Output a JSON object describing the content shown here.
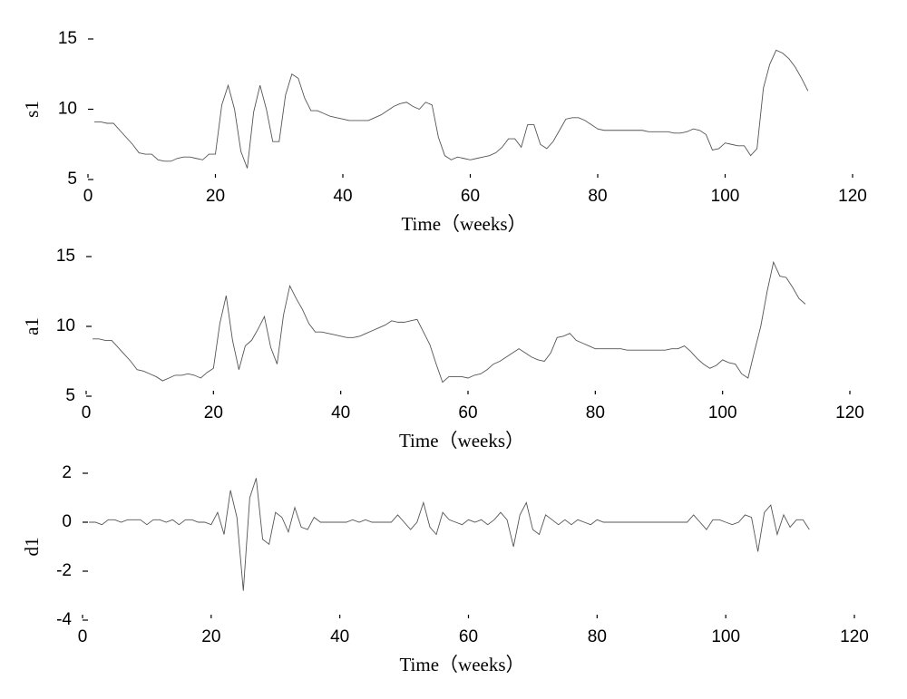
{
  "chart_data": [
    {
      "type": "line",
      "ylabel": "s1",
      "xlabel": "Time（weeks）",
      "color": "#555555",
      "x": [
        1,
        2,
        3,
        4,
        5,
        6,
        7,
        8,
        9,
        10,
        11,
        12,
        13,
        14,
        15,
        16,
        17,
        18,
        19,
        20,
        21,
        22,
        23,
        24,
        25,
        26,
        27,
        28,
        29,
        30,
        31,
        32,
        33,
        34,
        35,
        36,
        37,
        38,
        39,
        40,
        41,
        42,
        43,
        44,
        45,
        46,
        47,
        48,
        49,
        50,
        51,
        52,
        53,
        54,
        55,
        56,
        57,
        58,
        59,
        60,
        61,
        62,
        63,
        64,
        65,
        66,
        67,
        68,
        69,
        70,
        71,
        72,
        73,
        74,
        75,
        76,
        77,
        78,
        79,
        80,
        81,
        82,
        83,
        84,
        85,
        86,
        87,
        88,
        89,
        90,
        91,
        92,
        93,
        94,
        95,
        96,
        97,
        98,
        99,
        100,
        101,
        102,
        103,
        104,
        105,
        106,
        107,
        108,
        109,
        110,
        111,
        112,
        113
      ],
      "values": [
        9.1,
        9.1,
        9.0,
        9.0,
        8.5,
        8.0,
        7.5,
        6.9,
        6.8,
        6.8,
        6.4,
        6.3,
        6.3,
        6.5,
        6.6,
        6.6,
        6.5,
        6.4,
        6.8,
        6.8,
        10.3,
        11.7,
        10.0,
        7.0,
        5.8,
        9.8,
        11.7,
        10.0,
        7.7,
        7.7,
        11.0,
        12.5,
        12.2,
        10.8,
        9.9,
        9.9,
        9.7,
        9.5,
        9.4,
        9.3,
        9.2,
        9.2,
        9.2,
        9.2,
        9.4,
        9.6,
        9.9,
        10.2,
        10.4,
        10.5,
        10.2,
        10.0,
        10.5,
        10.3,
        8.0,
        6.7,
        6.4,
        6.6,
        6.5,
        6.4,
        6.5,
        6.6,
        6.7,
        6.9,
        7.3,
        7.9,
        7.9,
        7.3,
        8.9,
        8.9,
        7.5,
        7.2,
        7.7,
        8.5,
        9.3,
        9.4,
        9.4,
        9.2,
        8.9,
        8.6,
        8.5,
        8.5,
        8.5,
        8.5,
        8.5,
        8.5,
        8.5,
        8.4,
        8.4,
        8.4,
        8.4,
        8.3,
        8.3,
        8.4,
        8.6,
        8.5,
        8.2,
        7.1,
        7.2,
        7.6,
        7.5,
        7.4,
        7.4,
        6.7,
        7.2,
        11.5,
        13.2,
        14.2,
        14.0,
        13.6,
        13.0,
        12.2,
        11.3
      ],
      "xlim": [
        0,
        120
      ],
      "xticks": [
        0,
        20,
        40,
        60,
        80,
        100,
        120
      ],
      "ylim": [
        5,
        15
      ],
      "yticks": [
        5,
        10,
        15
      ]
    },
    {
      "type": "line",
      "ylabel": "a1",
      "xlabel": "Time（weeks）",
      "color": "#555555",
      "x": [
        1,
        2,
        3,
        4,
        5,
        6,
        7,
        8,
        9,
        10,
        11,
        12,
        13,
        14,
        15,
        16,
        17,
        18,
        19,
        20,
        21,
        22,
        23,
        24,
        25,
        26,
        27,
        28,
        29,
        30,
        31,
        32,
        33,
        34,
        35,
        36,
        37,
        38,
        39,
        40,
        41,
        42,
        43,
        44,
        45,
        46,
        47,
        48,
        49,
        50,
        51,
        52,
        53,
        54,
        55,
        56,
        57,
        58,
        59,
        60,
        61,
        62,
        63,
        64,
        65,
        66,
        67,
        68,
        69,
        70,
        71,
        72,
        73,
        74,
        75,
        76,
        77,
        78,
        79,
        80,
        81,
        82,
        83,
        84,
        85,
        86,
        87,
        88,
        89,
        90,
        91,
        92,
        93,
        94,
        95,
        96,
        97,
        98,
        99,
        100,
        101,
        102,
        103,
        104,
        105,
        106,
        107,
        108,
        109,
        110,
        111,
        112,
        113
      ],
      "values": [
        9.1,
        9.1,
        9.0,
        9.0,
        8.5,
        8.0,
        7.5,
        6.9,
        6.8,
        6.6,
        6.4,
        6.1,
        6.3,
        6.5,
        6.5,
        6.6,
        6.5,
        6.3,
        6.7,
        7.0,
        10.2,
        12.2,
        9.0,
        6.9,
        8.6,
        9.0,
        9.8,
        10.7,
        8.5,
        7.3,
        10.8,
        12.9,
        12.0,
        11.2,
        10.2,
        9.6,
        9.6,
        9.5,
        9.4,
        9.3,
        9.2,
        9.2,
        9.3,
        9.5,
        9.7,
        9.9,
        10.1,
        10.4,
        10.3,
        10.3,
        10.4,
        10.5,
        9.6,
        8.7,
        7.3,
        6.0,
        6.4,
        6.4,
        6.4,
        6.3,
        6.5,
        6.6,
        6.9,
        7.3,
        7.5,
        7.8,
        8.1,
        8.4,
        8.1,
        7.8,
        7.6,
        7.5,
        8.1,
        9.2,
        9.3,
        9.5,
        9.0,
        8.8,
        8.6,
        8.4,
        8.4,
        8.4,
        8.4,
        8.4,
        8.3,
        8.3,
        8.3,
        8.3,
        8.3,
        8.3,
        8.3,
        8.4,
        8.4,
        8.6,
        8.2,
        7.7,
        7.3,
        7.0,
        7.2,
        7.6,
        7.4,
        7.3,
        6.6,
        6.3,
        8.2,
        10.0,
        12.5,
        14.6,
        13.6,
        13.5,
        12.8,
        12.0,
        11.6
      ],
      "xlim": [
        0,
        120
      ],
      "xticks": [
        0,
        20,
        40,
        60,
        80,
        100,
        120
      ],
      "ylim": [
        5,
        15
      ],
      "yticks": [
        5,
        10,
        15
      ]
    },
    {
      "type": "line",
      "ylabel": "d1",
      "xlabel": "Time（weeks）",
      "color": "#555555",
      "x": [
        1,
        2,
        3,
        4,
        5,
        6,
        7,
        8,
        9,
        10,
        11,
        12,
        13,
        14,
        15,
        16,
        17,
        18,
        19,
        20,
        21,
        22,
        23,
        24,
        25,
        26,
        27,
        28,
        29,
        30,
        31,
        32,
        33,
        34,
        35,
        36,
        37,
        38,
        39,
        40,
        41,
        42,
        43,
        44,
        45,
        46,
        47,
        48,
        49,
        50,
        51,
        52,
        53,
        54,
        55,
        56,
        57,
        58,
        59,
        60,
        61,
        62,
        63,
        64,
        65,
        66,
        67,
        68,
        69,
        70,
        71,
        72,
        73,
        74,
        75,
        76,
        77,
        78,
        79,
        80,
        81,
        82,
        83,
        84,
        85,
        86,
        87,
        88,
        89,
        90,
        91,
        92,
        93,
        94,
        95,
        96,
        97,
        98,
        99,
        100,
        101,
        102,
        103,
        104,
        105,
        106,
        107,
        108,
        109,
        110,
        111,
        112,
        113
      ],
      "values": [
        0,
        0,
        -0.1,
        0.1,
        0.1,
        0,
        0.1,
        0.1,
        0.1,
        -0.1,
        0.1,
        0.1,
        0,
        0.1,
        -0.1,
        0.1,
        0.1,
        0,
        0,
        -0.1,
        0.4,
        -0.5,
        1.3,
        0.2,
        -2.8,
        1.0,
        1.8,
        -0.7,
        -0.9,
        0.4,
        0.2,
        -0.4,
        0.6,
        -0.2,
        -0.3,
        0.2,
        0,
        0,
        0,
        0,
        0,
        0.1,
        0,
        0.1,
        0,
        0,
        0,
        0,
        0.3,
        0,
        -0.3,
        0,
        0.8,
        -0.2,
        -0.5,
        0.4,
        0.1,
        0,
        -0.1,
        0.1,
        0,
        0.1,
        -0.1,
        0.1,
        0.4,
        0.1,
        -1.0,
        0.3,
        0.8,
        -0.3,
        -0.5,
        0.3,
        0.1,
        -0.1,
        0.1,
        -0.1,
        0.1,
        0,
        -0.1,
        0.1,
        0,
        0,
        0,
        0,
        0,
        0,
        0,
        0,
        0,
        0,
        0,
        0,
        0,
        0,
        0.3,
        0,
        -0.3,
        0.1,
        0.1,
        0,
        -0.1,
        0,
        0.3,
        0.2,
        -1.2,
        0.4,
        0.7,
        -0.5,
        0.3,
        -0.2,
        0.1,
        0.1,
        -0.3
      ],
      "xlim": [
        0,
        120
      ],
      "xticks": [
        0,
        20,
        40,
        60,
        80,
        100,
        120
      ],
      "ylim": [
        -4,
        2
      ],
      "yticks": [
        -4,
        -2,
        0,
        2
      ]
    }
  ]
}
